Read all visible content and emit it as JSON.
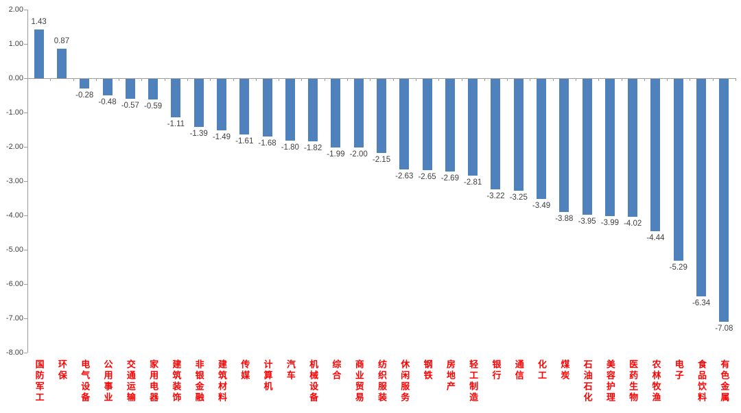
{
  "chart_data": {
    "type": "bar",
    "title": "",
    "xlabel": "",
    "ylabel": "",
    "categories": [
      "国防军工",
      "环保",
      "电气设备",
      "公用事业",
      "交通运输",
      "家用电器",
      "建筑装饰",
      "非银金融",
      "建筑材料",
      "传媒",
      "计算机",
      "汽车",
      "机械设备",
      "综合",
      "商业贸易",
      "纺织服装",
      "休闲服务",
      "钢铁",
      "房地产",
      "轻工制造",
      "银行",
      "通信",
      "化工",
      "煤炭",
      "石油石化",
      "美容护理",
      "医药生物",
      "农林牧渔",
      "电子",
      "食品饮料",
      "有色金属"
    ],
    "values": [
      1.43,
      0.87,
      -0.28,
      -0.48,
      -0.57,
      -0.59,
      -1.11,
      -1.39,
      -1.49,
      -1.61,
      -1.68,
      -1.8,
      -1.82,
      -1.99,
      -2.0,
      -2.15,
      -2.63,
      -2.65,
      -2.69,
      -2.81,
      -3.22,
      -3.25,
      -3.49,
      -3.88,
      -3.95,
      -3.99,
      -4.02,
      -4.44,
      -5.29,
      -6.34,
      -7.08
    ],
    "value_label_decimals": 2,
    "ylim": [
      -8,
      2
    ],
    "ytick_labels": [
      "2.00",
      "1.00",
      "0.00",
      "-1.00",
      "-2.00",
      "-3.00",
      "-4.00",
      "-5.00",
      "-6.00",
      "-7.00",
      "-8.00"
    ],
    "grid": "off",
    "legend": "none",
    "colors": {
      "bar": "#4f81bd",
      "value_label": "#404040",
      "axis": "#9b9b9b",
      "ytick_label": "#404040",
      "category_label": "#ff0000"
    }
  }
}
